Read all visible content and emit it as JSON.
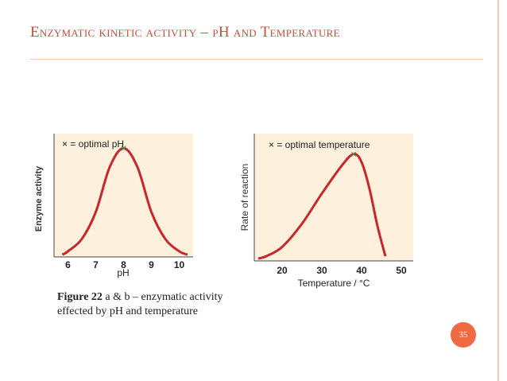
{
  "slide": {
    "title": "Enzymatic kinetic activity – pH and Temperature",
    "page_number": "35"
  },
  "caption": {
    "bold": "Figure 22",
    "rest": " a & b – enzymatic activity effected by pH and temperature"
  },
  "colors": {
    "title": "#c0503d",
    "curve": "#c8262b",
    "marker": "#3a9b52",
    "plot_bg": "#fdf1dd",
    "badge": "#f06a43"
  },
  "chart_data": [
    {
      "type": "line",
      "legend": "× = optimal pH",
      "ylabel": "Enzyme activity",
      "xlabel": "pH",
      "x_ticks": [
        "6",
        "7",
        "8",
        "9",
        "10"
      ],
      "xlim": [
        5.5,
        10.5
      ],
      "ylim": [
        0,
        1
      ],
      "optimum": {
        "x": 8,
        "y": 0.97
      },
      "series": [
        {
          "x": [
            5.8,
            6,
            6.5,
            7,
            7.5,
            8,
            8.5,
            9,
            9.5,
            10,
            10.3
          ],
          "y": [
            0.02,
            0.05,
            0.16,
            0.4,
            0.8,
            0.97,
            0.8,
            0.4,
            0.16,
            0.05,
            0.02
          ]
        }
      ]
    },
    {
      "type": "line",
      "legend": "× = optimal temperature",
      "ylabel": "Rate of reaction",
      "xlabel": "Temperature / °C",
      "x_ticks": [
        "20",
        "30",
        "40",
        "50"
      ],
      "xlim": [
        13,
        53
      ],
      "ylim": [
        0,
        1
      ],
      "optimum": {
        "x": 38,
        "y": 0.92
      },
      "series": [
        {
          "x": [
            14,
            16,
            20,
            25,
            30,
            35,
            38,
            40,
            42,
            44,
            46
          ],
          "y": [
            0.02,
            0.04,
            0.12,
            0.32,
            0.58,
            0.82,
            0.92,
            0.85,
            0.62,
            0.3,
            0.04
          ]
        }
      ]
    }
  ]
}
